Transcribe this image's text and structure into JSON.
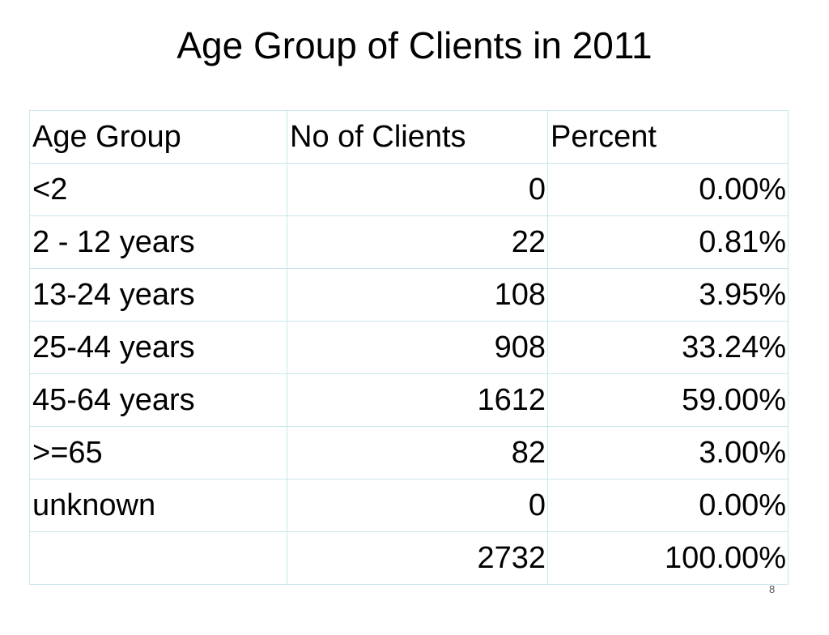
{
  "slide": {
    "title": "Age Group of Clients in 2011",
    "number": "8"
  },
  "table": {
    "headers": [
      "Age Group",
      "No of Clients",
      "Percent"
    ],
    "rows": [
      [
        "<2",
        "0",
        "0.00%"
      ],
      [
        "2 - 12 years",
        "22",
        "0.81%"
      ],
      [
        "13-24 years",
        "108",
        "3.95%"
      ],
      [
        "25-44 years",
        "908",
        "33.24%"
      ],
      [
        "45-64 years",
        "1612",
        "59.00%"
      ],
      [
        ">=65",
        "82",
        "3.00%"
      ],
      [
        "unknown",
        "0",
        "0.00%"
      ],
      [
        "",
        "2732",
        "100.00%"
      ]
    ]
  },
  "colors": {
    "border": "#c8e6ea",
    "text": "#000000",
    "background": "#ffffff"
  }
}
